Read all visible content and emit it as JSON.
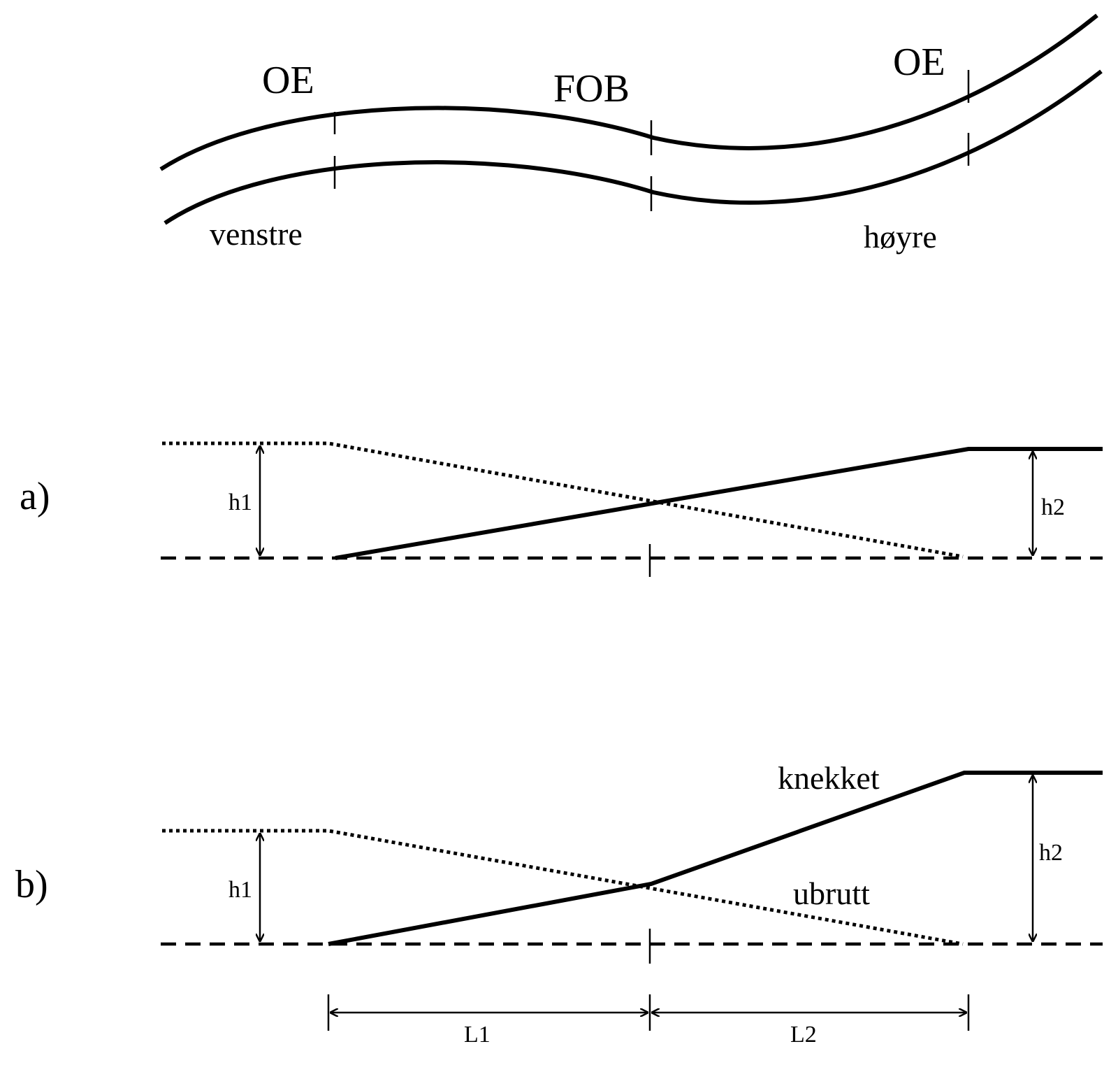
{
  "top": {
    "oe_left": "OE",
    "fob": "FOB",
    "oe_right": "OE",
    "left_side": "venstre",
    "right_side": "høyre"
  },
  "panel_a": {
    "label": "a)",
    "h1": "h1",
    "h2": "h2"
  },
  "panel_b": {
    "label": "b)",
    "h1": "h1",
    "h2": "h2",
    "knekket": "knekket",
    "ubrutt": "ubrutt",
    "l1": "L1",
    "l2": "L2"
  }
}
